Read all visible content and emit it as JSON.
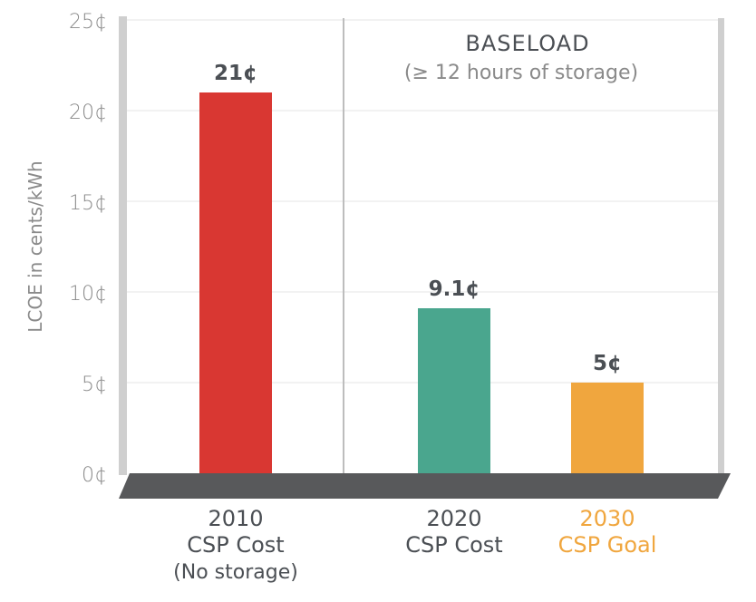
{
  "chart_data": {
    "type": "bar",
    "ylabel": "LCOE in cents/kWh",
    "ylim": [
      0,
      25
    ],
    "yticks": [
      "0¢",
      "5¢",
      "10¢",
      "15¢",
      "20¢",
      "25¢"
    ],
    "categories": [
      {
        "lines": [
          "2010",
          "CSP Cost"
        ],
        "sub": "(No storage)",
        "value": 21,
        "label": "21¢",
        "color": "#d93732",
        "label_color": "#4b4f54"
      },
      {
        "lines": [
          "2020",
          "CSP Cost"
        ],
        "sub": "",
        "value": 9.1,
        "label": "9.1¢",
        "color": "#4aa68e",
        "label_color": "#4b4f54"
      },
      {
        "lines": [
          "2030",
          "CSP Goal"
        ],
        "sub": "",
        "value": 5,
        "label": "5¢",
        "color": "#f0a63e",
        "label_color": "#f0a63e"
      }
    ],
    "section": {
      "title": "BASELOAD",
      "subtitle": "(≥ 12 hours of storage)"
    },
    "grid": true
  }
}
